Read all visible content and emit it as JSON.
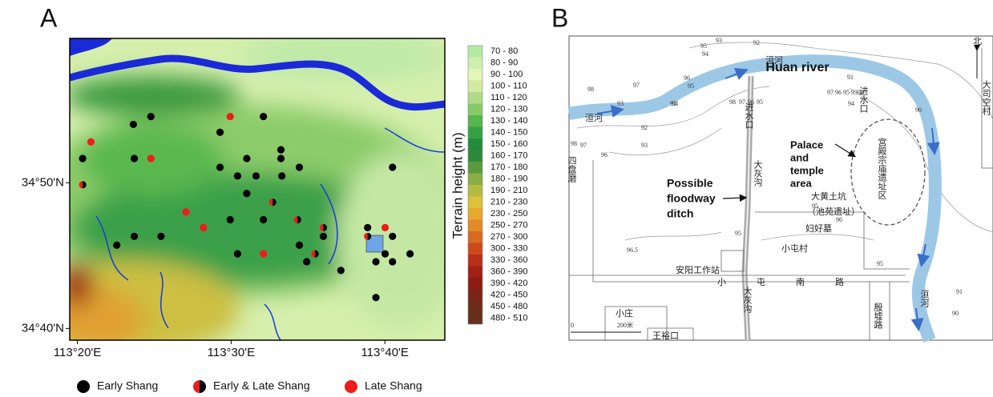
{
  "panel_a": {
    "label": "A",
    "xlim": [
      113.325,
      113.7317
    ],
    "ylim": [
      34.6533,
      34.9983
    ],
    "xticks": [
      {
        "value": 113.3333,
        "label": "113°20'E"
      },
      {
        "value": 113.5,
        "label": "113°30'E"
      },
      {
        "value": 113.6667,
        "label": "113°40'E"
      }
    ],
    "yticks": [
      {
        "value": 34.8333,
        "label": "34°50'N"
      },
      {
        "value": 34.6667,
        "label": "34°40'N"
      }
    ],
    "colorbar": {
      "title": "Terrain height (m)",
      "classes": [
        {
          "label": "70 - 80",
          "color": "#b4eaa6"
        },
        {
          "label": "80 - 90",
          "color": "#cdf0b0"
        },
        {
          "label": "90 - 100",
          "color": "#e4f5b8"
        },
        {
          "label": "100 - 110",
          "color": "#d4eaa4"
        },
        {
          "label": "110 - 120",
          "color": "#b0da88"
        },
        {
          "label": "120 - 130",
          "color": "#88ca6a"
        },
        {
          "label": "130 - 140",
          "color": "#58b650"
        },
        {
          "label": "140 - 150",
          "color": "#34a244"
        },
        {
          "label": "150 - 160",
          "color": "#228c3c"
        },
        {
          "label": "160 - 170",
          "color": "#2e8a3a"
        },
        {
          "label": "170 - 180",
          "color": "#5a9a3c"
        },
        {
          "label": "180 - 190",
          "color": "#8aae44"
        },
        {
          "label": "190 - 210",
          "color": "#b4bc40"
        },
        {
          "label": "210 - 230",
          "color": "#dcc23a"
        },
        {
          "label": "230 - 250",
          "color": "#e8a830"
        },
        {
          "label": "250 - 270",
          "color": "#e08a28"
        },
        {
          "label": "270 - 300",
          "color": "#d86a22"
        },
        {
          "label": "300 - 330",
          "color": "#cc4a1c"
        },
        {
          "label": "330 - 360",
          "color": "#b83018"
        },
        {
          "label": "360 - 390",
          "color": "#a02014"
        },
        {
          "label": "390 - 420",
          "color": "#8c1c14"
        },
        {
          "label": "420 - 450",
          "color": "#7a2418"
        },
        {
          "label": "450 - 480",
          "color": "#6e2c1c"
        },
        {
          "label": "480 - 510",
          "color": "#66301e"
        }
      ]
    },
    "site_groups": [
      {
        "name": "Early Shang",
        "color": "#000000",
        "lon": [
          113.394,
          113.413,
          113.339,
          113.395,
          113.488,
          113.535,
          113.554,
          113.554,
          113.488,
          113.507,
          113.517,
          113.527,
          113.574,
          113.555,
          113.675,
          113.517,
          113.499,
          113.535,
          113.395,
          113.424,
          113.376,
          113.507,
          113.574,
          113.6,
          113.582,
          113.619,
          113.648,
          113.675,
          113.667,
          113.657,
          113.675,
          113.694,
          113.657
        ],
        "lat": [
          34.9,
          34.909,
          34.861,
          34.861,
          34.891,
          34.909,
          34.871,
          34.861,
          34.851,
          34.841,
          34.861,
          34.841,
          34.851,
          34.841,
          34.851,
          34.821,
          34.791,
          34.791,
          34.772,
          34.772,
          34.762,
          34.752,
          34.762,
          34.772,
          34.743,
          34.733,
          34.782,
          34.772,
          34.752,
          34.743,
          34.743,
          34.752,
          34.702
        ]
      },
      {
        "name": "Early & Late Shang",
        "colors": [
          "#ee1c1c",
          "#000000"
        ],
        "lon": [
          113.339,
          113.545,
          113.572,
          113.6,
          113.591,
          113.648
        ],
        "lat": [
          34.831,
          34.811,
          34.791,
          34.782,
          34.752,
          34.772
        ]
      },
      {
        "name": "Late Shang",
        "color": "#ee1c1c",
        "lon": [
          113.348,
          113.413,
          113.499,
          113.451,
          113.47,
          113.535,
          113.667
        ],
        "lat": [
          34.88,
          34.861,
          34.909,
          34.8,
          34.782,
          34.752,
          34.782
        ]
      }
    ]
  },
  "panel_b": {
    "label": "B",
    "river_name": "Huan river",
    "palace_label": [
      "Palace",
      "and",
      "temple",
      "area"
    ],
    "ditch_label": [
      "Possible",
      "floodway",
      "ditch"
    ],
    "place_names": [
      "洹河",
      "洹河",
      "洹河",
      "进水口",
      "进水口",
      "大灰沟",
      "大灰沟",
      "大黄土坑",
      "（池苑遗址）",
      "宫殿宗庙遗址区",
      "小屯村",
      "安阳工作站",
      "小屯南路",
      "殷墟路",
      "四盘磨",
      "妇好墓",
      "小庄",
      "王裕口",
      "北",
      "大司空村"
    ],
    "scale": [
      "0",
      "200米"
    ],
    "contour_labels": [
      "93",
      "92",
      "95",
      "94",
      "98",
      "97",
      "93",
      "92",
      "92",
      "93",
      "96",
      "95",
      "94",
      "98",
      "97",
      "96",
      "95",
      "97 96 95 9392",
      "94",
      "91",
      "90",
      "98",
      "97",
      "96",
      "95",
      "96",
      "95",
      "96.5",
      "95",
      "91",
      "90"
    ]
  }
}
